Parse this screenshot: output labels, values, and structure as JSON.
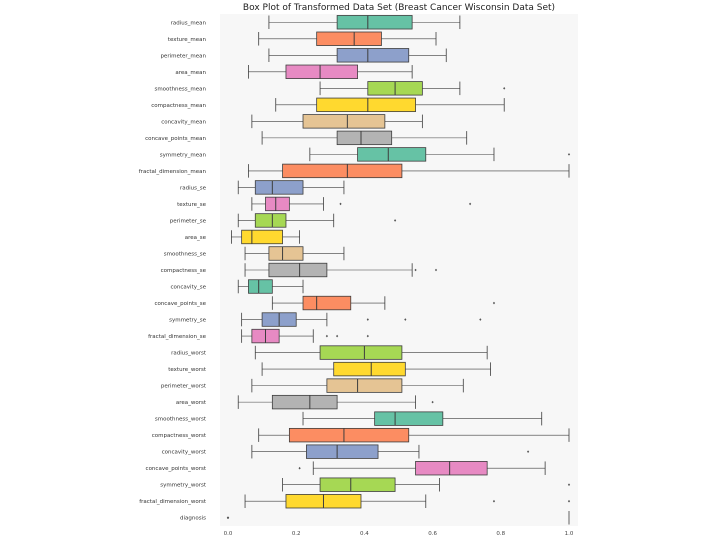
{
  "chart_data": {
    "type": "boxplot",
    "orientation": "horizontal",
    "title": "Box Plot of Transformed Data Set (Breast Cancer Wisconsin Data Set)",
    "xlabel": "",
    "ylabel": "",
    "xlim": [
      0.0,
      1.0
    ],
    "xticks": [
      0.0,
      0.2,
      0.4,
      0.6,
      0.8,
      1.0
    ],
    "xtick_labels": [
      "0.0",
      "0.2",
      "0.4",
      "0.6",
      "0.8",
      "1.0"
    ],
    "grid": false,
    "palette": [
      "#66c2a5",
      "#fc8d62",
      "#8da0cb",
      "#e78ac3",
      "#a6d854",
      "#ffd92f",
      "#e5c494",
      "#b3b3b3"
    ],
    "features": [
      {
        "name": "radius_mean",
        "whislo": 0.12,
        "q1": 0.32,
        "med": 0.41,
        "q3": 0.54,
        "whishi": 0.68,
        "fliers": []
      },
      {
        "name": "texture_mean",
        "whislo": 0.09,
        "q1": 0.26,
        "med": 0.37,
        "q3": 0.45,
        "whishi": 0.61,
        "fliers": []
      },
      {
        "name": "perimeter_mean",
        "whislo": 0.12,
        "q1": 0.32,
        "med": 0.41,
        "q3": 0.53,
        "whishi": 0.64,
        "fliers": []
      },
      {
        "name": "area_mean",
        "whislo": 0.06,
        "q1": 0.17,
        "med": 0.27,
        "q3": 0.38,
        "whishi": 0.54,
        "fliers": []
      },
      {
        "name": "smoothness_mean",
        "whislo": 0.27,
        "q1": 0.41,
        "med": 0.49,
        "q3": 0.57,
        "whishi": 0.68,
        "fliers": [
          0.81
        ]
      },
      {
        "name": "compactness_mean",
        "whislo": 0.14,
        "q1": 0.26,
        "med": 0.41,
        "q3": 0.55,
        "whishi": 0.81,
        "fliers": []
      },
      {
        "name": "concavity_mean",
        "whislo": 0.07,
        "q1": 0.22,
        "med": 0.35,
        "q3": 0.46,
        "whishi": 0.57,
        "fliers": []
      },
      {
        "name": "concave_points_mean",
        "whislo": 0.1,
        "q1": 0.32,
        "med": 0.39,
        "q3": 0.48,
        "whishi": 0.7,
        "fliers": []
      },
      {
        "name": "symmetry_mean",
        "whislo": 0.24,
        "q1": 0.38,
        "med": 0.47,
        "q3": 0.58,
        "whishi": 0.78,
        "fliers": [
          1.0
        ]
      },
      {
        "name": "fractal_dimension_mean",
        "whislo": 0.06,
        "q1": 0.16,
        "med": 0.35,
        "q3": 0.51,
        "whishi": 1.0,
        "fliers": []
      },
      {
        "name": "radius_se",
        "whislo": 0.03,
        "q1": 0.08,
        "med": 0.13,
        "q3": 0.22,
        "whishi": 0.34,
        "fliers": []
      },
      {
        "name": "texture_se",
        "whislo": 0.07,
        "q1": 0.11,
        "med": 0.14,
        "q3": 0.18,
        "whishi": 0.28,
        "fliers": [
          0.33,
          0.71
        ]
      },
      {
        "name": "perimeter_se",
        "whislo": 0.03,
        "q1": 0.08,
        "med": 0.13,
        "q3": 0.17,
        "whishi": 0.31,
        "fliers": [
          0.49
        ]
      },
      {
        "name": "area_se",
        "whislo": 0.01,
        "q1": 0.04,
        "med": 0.07,
        "q3": 0.16,
        "whishi": 0.21,
        "fliers": []
      },
      {
        "name": "smoothness_se",
        "whislo": 0.05,
        "q1": 0.12,
        "med": 0.16,
        "q3": 0.22,
        "whishi": 0.34,
        "fliers": []
      },
      {
        "name": "compactness_se",
        "whislo": 0.05,
        "q1": 0.12,
        "med": 0.21,
        "q3": 0.29,
        "whishi": 0.54,
        "fliers": [
          0.55,
          0.61
        ]
      },
      {
        "name": "concavity_se",
        "whislo": 0.03,
        "q1": 0.06,
        "med": 0.09,
        "q3": 0.13,
        "whishi": 0.22,
        "fliers": []
      },
      {
        "name": "concave_points_se",
        "whislo": 0.13,
        "q1": 0.22,
        "med": 0.26,
        "q3": 0.36,
        "whishi": 0.46,
        "fliers": [
          0.78
        ]
      },
      {
        "name": "symmetry_se",
        "whislo": 0.04,
        "q1": 0.1,
        "med": 0.15,
        "q3": 0.2,
        "whishi": 0.29,
        "fliers": [
          0.41,
          0.52,
          0.74
        ]
      },
      {
        "name": "fractal_dimension_se",
        "whislo": 0.04,
        "q1": 0.07,
        "med": 0.11,
        "q3": 0.15,
        "whishi": 0.25,
        "fliers": [
          0.29,
          0.32,
          0.41
        ]
      },
      {
        "name": "radius_worst",
        "whislo": 0.08,
        "q1": 0.27,
        "med": 0.4,
        "q3": 0.51,
        "whishi": 0.76,
        "fliers": []
      },
      {
        "name": "texture_worst",
        "whislo": 0.1,
        "q1": 0.31,
        "med": 0.42,
        "q3": 0.52,
        "whishi": 0.77,
        "fliers": []
      },
      {
        "name": "perimeter_worst",
        "whislo": 0.07,
        "q1": 0.29,
        "med": 0.38,
        "q3": 0.51,
        "whishi": 0.69,
        "fliers": []
      },
      {
        "name": "area_worst",
        "whislo": 0.03,
        "q1": 0.13,
        "med": 0.24,
        "q3": 0.32,
        "whishi": 0.55,
        "fliers": [
          0.6
        ]
      },
      {
        "name": "smoothness_worst",
        "whislo": 0.22,
        "q1": 0.43,
        "med": 0.49,
        "q3": 0.63,
        "whishi": 0.92,
        "fliers": []
      },
      {
        "name": "compactness_worst",
        "whislo": 0.09,
        "q1": 0.18,
        "med": 0.34,
        "q3": 0.53,
        "whishi": 1.0,
        "fliers": []
      },
      {
        "name": "concavity_worst",
        "whislo": 0.07,
        "q1": 0.23,
        "med": 0.32,
        "q3": 0.44,
        "whishi": 0.56,
        "fliers": [
          0.88
        ]
      },
      {
        "name": "concave_points_worst",
        "whislo": 0.25,
        "q1": 0.55,
        "med": 0.65,
        "q3": 0.76,
        "whishi": 0.93,
        "fliers": [
          0.21
        ]
      },
      {
        "name": "symmetry_worst",
        "whislo": 0.16,
        "q1": 0.27,
        "med": 0.36,
        "q3": 0.49,
        "whishi": 0.62,
        "fliers": [
          1.0
        ]
      },
      {
        "name": "fractal_dimension_worst",
        "whislo": 0.05,
        "q1": 0.17,
        "med": 0.28,
        "q3": 0.39,
        "whishi": 0.58,
        "fliers": [
          0.78,
          1.0
        ]
      },
      {
        "name": "diagnosis",
        "whislo": 0.0,
        "q1": 0.0,
        "med": 0.0,
        "q3": 1.0,
        "whishi": 1.0,
        "fliers": [
          0.0
        ],
        "draw_box": false
      }
    ]
  }
}
